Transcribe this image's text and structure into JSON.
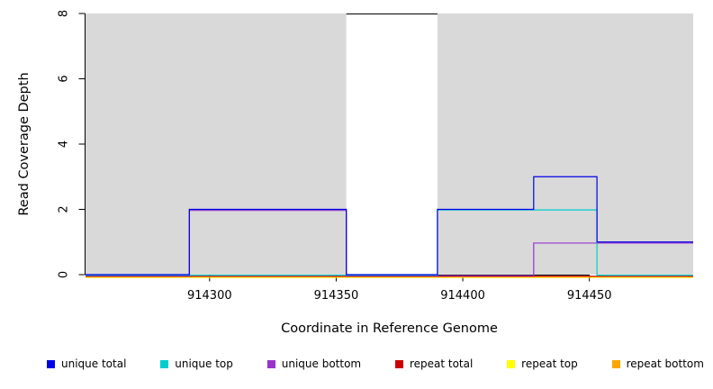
{
  "figure": {
    "xlabel": "Coordinate in Reference Genome",
    "ylabel": "Read Coverage Depth"
  },
  "chart_data": {
    "type": "line",
    "subtype": "step-coverage",
    "title": "",
    "xlabel": "Coordinate in Reference Genome",
    "ylabel": "Read Coverage Depth",
    "xlim": [
      914251,
      914491
    ],
    "ylim": [
      0,
      8
    ],
    "xticks": [
      914300,
      914350,
      914400,
      914450
    ],
    "yticks": [
      0,
      2,
      4,
      6,
      8
    ],
    "grid": false,
    "legend_position": "bottom",
    "region_color": "#d9d9d9",
    "shaded_regions": [
      {
        "x0": 914251,
        "x1": 914354
      },
      {
        "x0": 914390,
        "x1": 914491
      }
    ],
    "gap": {
      "x0": 914354,
      "x1": 914390,
      "top_border": true
    },
    "draw_order": [
      "repeat top",
      "repeat bottom",
      "repeat total",
      "unique bottom",
      "unique top",
      "unique total"
    ],
    "series": [
      {
        "name": "unique total",
        "color": "#0000e6",
        "steps": [
          {
            "from": 914251,
            "to": 914292,
            "depth": 0
          },
          {
            "from": 914292,
            "to": 914354,
            "depth": 2
          },
          {
            "from": 914354,
            "to": 914390,
            "depth": 0
          },
          {
            "from": 914390,
            "to": 914428,
            "depth": 2
          },
          {
            "from": 914428,
            "to": 914453,
            "depth": 3
          },
          {
            "from": 914453,
            "to": 914491,
            "depth": 1
          }
        ]
      },
      {
        "name": "unique top",
        "color": "#00cdcd",
        "steps": [
          {
            "from": 914251,
            "to": 914390,
            "depth": 0
          },
          {
            "from": 914390,
            "to": 914453,
            "depth": 2
          },
          {
            "from": 914453,
            "to": 914491,
            "depth": 0
          }
        ]
      },
      {
        "name": "unique bottom",
        "color": "#9932cc",
        "steps": [
          {
            "from": 914251,
            "to": 914292,
            "depth": 0
          },
          {
            "from": 914292,
            "to": 914354,
            "depth": 2
          },
          {
            "from": 914354,
            "to": 914428,
            "depth": 0
          },
          {
            "from": 914428,
            "to": 914491,
            "depth": 1
          }
        ]
      },
      {
        "name": "repeat total",
        "color": "#cd0000",
        "steps": [
          {
            "from": 914251,
            "to": 914491,
            "depth": 0
          }
        ]
      },
      {
        "name": "repeat top",
        "color": "#ffff00",
        "steps": [
          {
            "from": 914251,
            "to": 914491,
            "depth": 0
          }
        ]
      },
      {
        "name": "repeat bottom",
        "color": "#ffa500",
        "steps": [
          {
            "from": 914251,
            "to": 914491,
            "depth": 0
          }
        ]
      }
    ]
  }
}
